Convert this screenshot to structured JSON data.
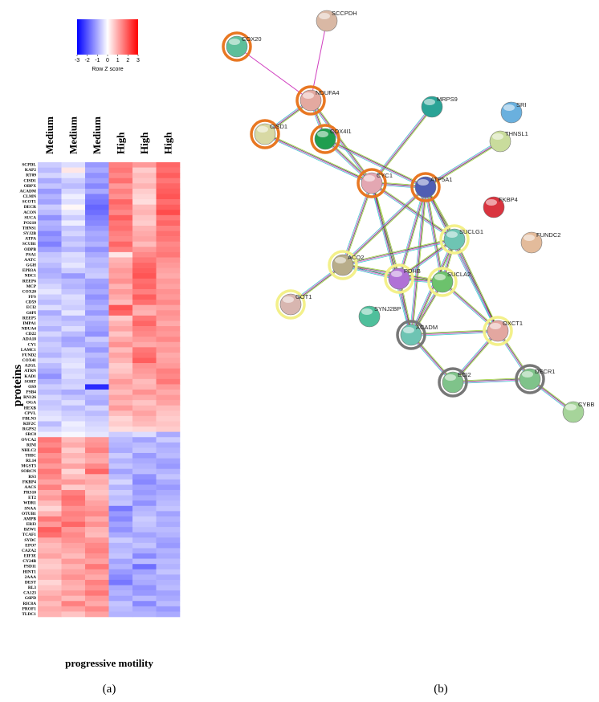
{
  "chart_data": {
    "type": "heatmap",
    "columns": [
      "Medium",
      "Medium",
      "Medium",
      "High",
      "High",
      "High"
    ],
    "rows": [
      "SCPDL",
      "KAP2",
      "RT09",
      "CISD1",
      "ODPX",
      "ACADM",
      "CLMN",
      "SCOT1",
      "DECR",
      "ACON",
      "SUCA",
      "PO210",
      "THNS1",
      "SYJ2B",
      "ATPA",
      "SCUB1",
      "ODPB",
      "PSA1",
      "AATC",
      "GGH",
      "EPB3A",
      "NDC1",
      "REEP6",
      "MCP",
      "COX20",
      "FFS",
      "CD59",
      "ECI2",
      "G6PI",
      "REEP5",
      "IMPA1",
      "NDUA4",
      "CD22",
      "ADA18",
      "CY1",
      "LAMC1",
      "FUND2",
      "COX41",
      "A2GL",
      "ATRN",
      "KAD1",
      "SORT",
      "OS9",
      "PSB4",
      "RN126",
      "OGA",
      "HEXB",
      "CPVL",
      "FBLN3",
      "KIF2C",
      "RGPS2",
      "SRC8",
      "OVCA2",
      "RINI",
      "NHLC2",
      "THIC",
      "RL14",
      "MGST3",
      "SORCN",
      "RS3",
      "FKBP4",
      "AACS",
      "PRS10",
      "ET2",
      "WDR1",
      "SNAA",
      "OTUB1",
      "AMPB",
      "ERI3",
      "BZW1",
      "TCAF1",
      "SYDC",
      "EPO7",
      "CAZA2",
      "EIF3E",
      "CY24B",
      "PSD11",
      "HINT1",
      "2AAA",
      "DEST",
      "RL3",
      "CA123",
      "G6PD",
      "RIC8A",
      "PROF1",
      "TLDC1"
    ],
    "values": [
      [
        -0.6,
        -0.4,
        -1.2,
        1.5,
        1.2,
        1.8
      ],
      [
        -0.8,
        0.3,
        -1.0,
        1.6,
        0.6,
        1.7
      ],
      [
        -0.5,
        -0.3,
        -1.3,
        1.4,
        0.8,
        1.9
      ],
      [
        -1.0,
        -0.6,
        -1.1,
        1.7,
        0.7,
        1.6
      ],
      [
        -0.7,
        -0.8,
        -1.4,
        1.2,
        0.9,
        1.8
      ],
      [
        -1.2,
        -0.5,
        -1.0,
        1.5,
        0.6,
        1.9
      ],
      [
        -0.9,
        -0.2,
        -1.5,
        1.3,
        0.5,
        2.0
      ],
      [
        -1.1,
        -0.4,
        -1.6,
        1.8,
        0.4,
        1.7
      ],
      [
        -0.6,
        0.1,
        -1.8,
        1.6,
        0.8,
        1.9
      ],
      [
        -0.8,
        -0.3,
        -1.7,
        1.4,
        0.9,
        2.1
      ],
      [
        -1.3,
        -0.6,
        -1.5,
        1.9,
        0.7,
        1.6
      ],
      [
        -0.9,
        -0.2,
        -1.4,
        1.6,
        0.6,
        1.8
      ],
      [
        -1.0,
        -0.7,
        -1.2,
        1.7,
        0.9,
        1.5
      ],
      [
        -1.4,
        -0.5,
        -1.0,
        1.5,
        1.0,
        1.7
      ],
      [
        -1.2,
        -0.8,
        -1.1,
        1.4,
        1.1,
        1.6
      ],
      [
        -1.5,
        -0.6,
        -0.9,
        1.8,
        0.8,
        1.4
      ],
      [
        -1.1,
        -0.9,
        -1.3,
        1.5,
        1.2,
        1.5
      ],
      [
        -0.7,
        -0.4,
        -1.0,
        0.3,
        1.4,
        1.6
      ],
      [
        -0.6,
        -0.5,
        -0.8,
        0.9,
        1.6,
        1.3
      ],
      [
        -0.8,
        -0.3,
        -0.9,
        1.0,
        1.8,
        1.2
      ],
      [
        -1.0,
        -0.6,
        -0.7,
        1.2,
        1.9,
        1.1
      ],
      [
        -0.9,
        -1.2,
        -0.6,
        1.1,
        2.0,
        1.0
      ],
      [
        -0.7,
        -0.8,
        -1.1,
        1.3,
        1.7,
        1.2
      ],
      [
        -0.5,
        -0.9,
        -1.2,
        0.9,
        1.8,
        1.1
      ],
      [
        -0.3,
        -0.7,
        -1.0,
        1.2,
        1.5,
        1.3
      ],
      [
        -0.6,
        -0.4,
        -1.3,
        1.0,
        1.9,
        1.2
      ],
      [
        -0.8,
        -0.5,
        -1.1,
        0.8,
        1.7,
        1.4
      ],
      [
        -0.4,
        -0.6,
        -0.9,
        2.0,
        1.0,
        1.1
      ],
      [
        -1.0,
        -0.3,
        -1.2,
        1.8,
        0.9,
        1.3
      ],
      [
        -0.7,
        -0.9,
        -0.8,
        0.6,
        1.6,
        1.2
      ],
      [
        -0.6,
        -0.7,
        -1.0,
        0.9,
        1.8,
        1.0
      ],
      [
        -0.9,
        -0.4,
        -1.1,
        1.1,
        1.5,
        1.3
      ],
      [
        -0.5,
        -0.8,
        -1.3,
        0.7,
        1.4,
        1.2
      ],
      [
        -0.8,
        -1.1,
        -0.6,
        1.0,
        1.2,
        1.4
      ],
      [
        -0.6,
        -1.0,
        -0.9,
        1.3,
        1.0,
        1.1
      ],
      [
        -0.7,
        -0.5,
        -1.2,
        0.8,
        1.6,
        1.2
      ],
      [
        -0.9,
        -0.6,
        -0.8,
        1.1,
        1.7,
        1.0
      ],
      [
        -0.5,
        -0.4,
        -1.0,
        0.9,
        1.9,
        1.1
      ],
      [
        -0.8,
        -0.3,
        -1.1,
        0.6,
        1.3,
        1.2
      ],
      [
        -1.0,
        -0.5,
        -0.7,
        0.7,
        1.2,
        1.5
      ],
      [
        -1.3,
        -0.4,
        -0.8,
        0.9,
        1.1,
        1.4
      ],
      [
        -0.9,
        -0.6,
        -0.6,
        1.2,
        0.8,
        1.6
      ],
      [
        -0.6,
        -0.5,
        -2.5,
        1.0,
        0.9,
        1.2
      ],
      [
        -0.8,
        -1.0,
        -0.7,
        0.8,
        1.3,
        1.0
      ],
      [
        -0.5,
        -0.7,
        -0.9,
        1.1,
        1.0,
        1.2
      ],
      [
        -0.7,
        -0.4,
        -1.0,
        0.9,
        0.7,
        1.1
      ],
      [
        -0.6,
        -0.8,
        -0.5,
        1.2,
        0.9,
        0.8
      ],
      [
        -0.4,
        -0.6,
        -0.8,
        0.8,
        1.1,
        0.7
      ],
      [
        -0.3,
        -0.5,
        -0.6,
        0.5,
        0.9,
        0.6
      ],
      [
        -0.8,
        -0.2,
        -0.5,
        0.6,
        0.8,
        0.7
      ],
      [
        -0.5,
        -0.3,
        -0.4,
        0.4,
        0.5,
        0.6
      ],
      [
        -0.2,
        -0.1,
        -0.3,
        -0.6,
        -0.4,
        -1.0
      ],
      [
        1.6,
        0.8,
        1.2,
        -0.8,
        -1.1,
        -0.6
      ],
      [
        1.4,
        1.0,
        1.3,
        -0.9,
        -0.8,
        -1.0
      ],
      [
        1.7,
        0.6,
        1.5,
        -1.0,
        -0.7,
        -0.9
      ],
      [
        1.3,
        0.9,
        1.1,
        -0.6,
        -1.2,
        -0.8
      ],
      [
        1.5,
        0.7,
        1.0,
        -0.9,
        -1.0,
        -1.1
      ],
      [
        1.2,
        1.1,
        1.4,
        -0.7,
        -0.9,
        -1.2
      ],
      [
        1.6,
        0.5,
        1.8,
        -1.1,
        -0.8,
        -0.9
      ],
      [
        1.4,
        0.8,
        0.9,
        -0.8,
        -1.3,
        -0.7
      ],
      [
        1.1,
        1.2,
        1.0,
        -0.5,
        -1.4,
        -1.0
      ],
      [
        1.5,
        0.6,
        0.8,
        -0.9,
        -1.1,
        -1.2
      ],
      [
        1.0,
        1.5,
        0.7,
        -0.6,
        -1.2,
        -1.0
      ],
      [
        1.2,
        1.7,
        0.9,
        -0.8,
        -1.0,
        -0.9
      ],
      [
        0.8,
        1.6,
        1.1,
        -0.7,
        -1.3,
        -0.8
      ],
      [
        0.5,
        1.3,
        1.2,
        -1.6,
        -0.9,
        -0.7
      ],
      [
        0.9,
        1.5,
        1.4,
        -1.2,
        -0.8,
        -1.1
      ],
      [
        1.6,
        1.4,
        1.0,
        -1.4,
        -0.6,
        -0.9
      ],
      [
        1.2,
        1.8,
        1.3,
        -1.1,
        -0.7,
        -1.0
      ],
      [
        1.9,
        1.2,
        0.9,
        -1.3,
        -0.8,
        -0.8
      ],
      [
        1.7,
        1.4,
        0.8,
        -1.0,
        -1.1,
        -0.9
      ],
      [
        1.0,
        1.3,
        1.2,
        -0.6,
        -0.9,
        -1.1
      ],
      [
        0.8,
        1.1,
        1.4,
        -0.9,
        -0.7,
        -1.2
      ],
      [
        0.9,
        1.0,
        1.5,
        -0.8,
        -1.0,
        -0.9
      ],
      [
        1.1,
        0.8,
        1.3,
        -0.7,
        -1.4,
        -1.0
      ],
      [
        0.7,
        1.2,
        1.1,
        -1.1,
        -0.8,
        -0.8
      ],
      [
        0.6,
        0.9,
        1.6,
        -0.9,
        -1.7,
        -0.9
      ],
      [
        0.8,
        1.1,
        1.2,
        -1.2,
        -1.1,
        -0.7
      ],
      [
        0.9,
        1.3,
        1.0,
        -1.4,
        -0.9,
        -1.0
      ],
      [
        0.5,
        1.0,
        1.5,
        -1.6,
        -1.0,
        -0.9
      ],
      [
        0.7,
        0.9,
        1.3,
        -1.0,
        -1.3,
        -0.8
      ],
      [
        0.9,
        1.2,
        1.6,
        -0.9,
        -1.2,
        -1.1
      ],
      [
        1.1,
        0.8,
        1.2,
        -1.1,
        -0.8,
        -1.0
      ],
      [
        0.8,
        1.5,
        1.0,
        -0.7,
        -1.4,
        -0.8
      ],
      [
        1.0,
        1.1,
        1.4,
        -0.8,
        -1.0,
        -1.2
      ],
      [
        0.9,
        0.7,
        1.1,
        -0.9,
        -0.9,
        -1.0
      ]
    ],
    "zlim": [
      -3,
      3
    ],
    "zticks": [
      -3,
      -2,
      -1,
      0,
      1,
      2,
      3
    ],
    "colorbar_label": "Row Z score",
    "colors": [
      "#0000ff",
      "#ffffff",
      "#ff0000"
    ],
    "xlabel": "progressive motility",
    "ylabel": "proteins"
  },
  "panel_labels": [
    "(a)",
    "(b)"
  ],
  "network": {
    "nodes": [
      "SCCPDH",
      "COX20",
      "NDUFA4",
      "MRPS9",
      "SRI",
      "CISD1",
      "COX4I1",
      "THNSL1",
      "CYC1",
      "ATP5A1",
      "FKBP4",
      "FUNDC2",
      "SUCLG1",
      "ACO2",
      "PDHB",
      "SUCLA2",
      "GOT1",
      "SYNJ2BP",
      "ACADM",
      "OXCT1",
      "ECI2",
      "DECR1",
      "CYBB"
    ]
  }
}
